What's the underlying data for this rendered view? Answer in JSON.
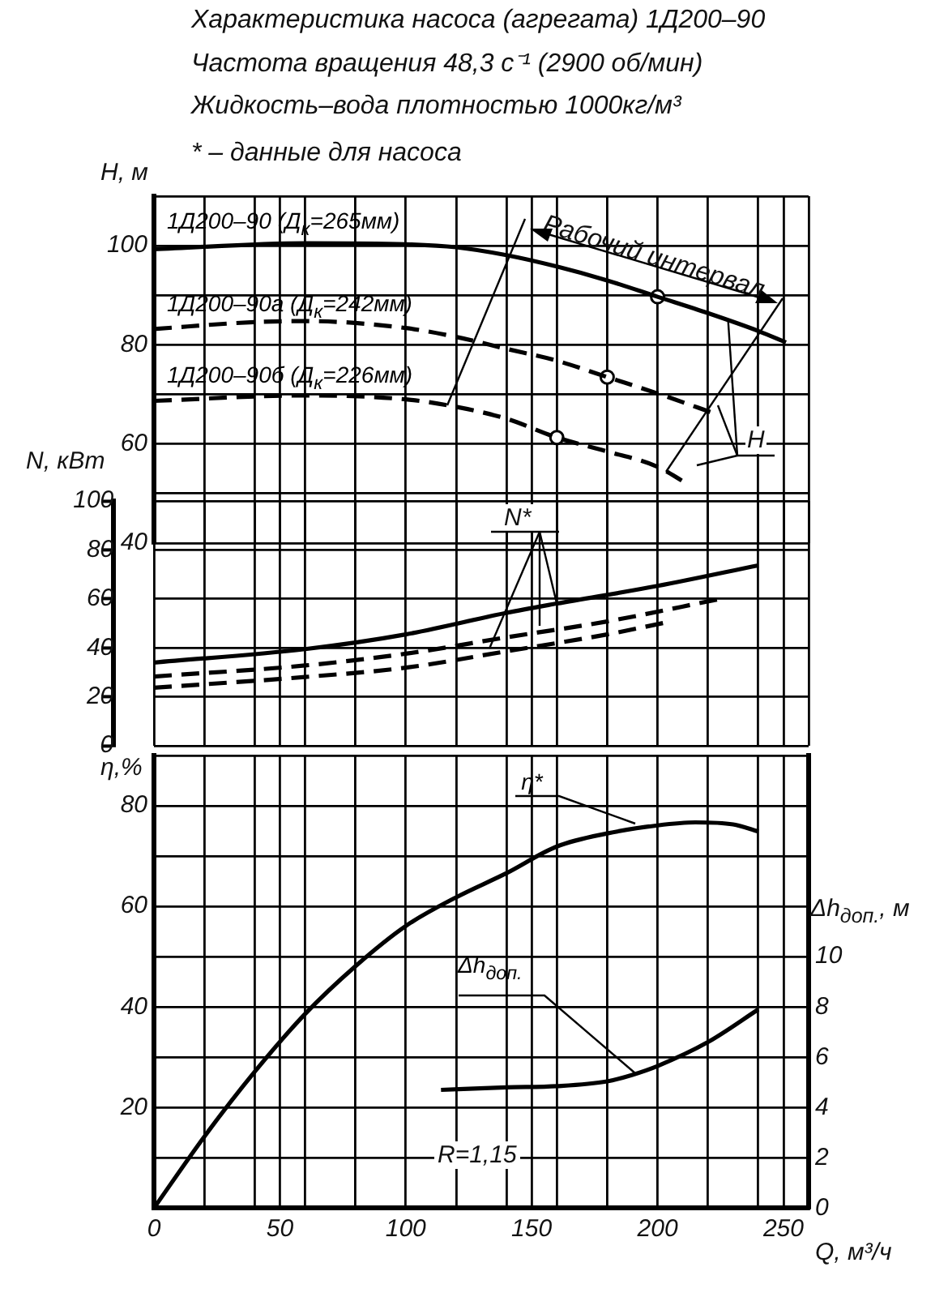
{
  "chart_data": [
    {
      "type": "line",
      "title": "Характеристика насоса (агрегата) 1Д200–90",
      "subtitle": "Частота вращения 48,3 с⁻¹ (2900 об/мин)",
      "annotations": [
        "Жидкость–вода плотностью 1000кг/м³",
        "* – данные для насоса",
        {
          "text": "Рабочий интервал",
          "x": 195,
          "y": 90.5
        },
        {
          "text": "H",
          "x": 228,
          "y": 85
        }
      ],
      "ylabel": "H, м",
      "tick_labels": "y",
      "xlim": [
        0,
        260
      ],
      "xticks": [
        0,
        {
          "value": 20,
          "label": null
        },
        {
          "value": 40,
          "label": null
        },
        50,
        {
          "value": 60,
          "label": null
        },
        {
          "value": 80,
          "label": null
        },
        100,
        {
          "value": 120,
          "label": null
        },
        {
          "value": 140,
          "label": null
        },
        150,
        {
          "value": 160,
          "label": null
        },
        {
          "value": 180,
          "label": null
        },
        200,
        {
          "value": 220,
          "label": null
        },
        {
          "value": 240,
          "label": null
        },
        250,
        {
          "value": 260,
          "label": null
        }
      ],
      "ylim": [
        40,
        110
      ],
      "yticks": [
        40,
        {
          "value": 50,
          "label": null
        },
        60,
        {
          "value": 70,
          "label": null
        },
        80,
        {
          "value": 90,
          "label": null
        },
        100,
        {
          "value": 110,
          "label": null
        }
      ],
      "grid": true,
      "marker": "none",
      "series": [
        {
          "name": "1Д200–90 (Д$_{к}$=265мм)",
          "color": "#000000",
          "line_style": "solid",
          "x": [
            0,
            60,
            100,
            120,
            140,
            160,
            180,
            200,
            220,
            240,
            251
          ],
          "values": [
            99.3,
            100.5,
            100.3,
            99.7,
            98.1,
            95.8,
            93,
            89.7,
            86.4,
            82.8,
            80.5
          ]
        },
        {
          "name": "1Д200–90а (Д$_{к}$=242мм)",
          "color": "#000000",
          "line_style": "dashed",
          "x": [
            0,
            40,
            60,
            100,
            120,
            140,
            160,
            180,
            200,
            224
          ],
          "values": [
            83.2,
            84.6,
            84.8,
            83.4,
            81.6,
            79.2,
            76.8,
            73.5,
            70.2,
            65.9
          ]
        },
        {
          "name": "1Д200–90б (Д$_{к}$=226мм)",
          "color": "#000000",
          "line_style": "dashed",
          "x": [
            0,
            60,
            100,
            120,
            140,
            160,
            180,
            200,
            211
          ],
          "values": [
            68.7,
            69.8,
            69,
            67.5,
            65.1,
            61.3,
            58.5,
            55.4,
            52.2
          ]
        },
        {
          "type": "scatter",
          "marker": "circle",
          "color": "#000000",
          "x": [
            200
          ],
          "values": [
            89.7
          ]
        },
        {
          "type": "scatter",
          "marker": "circle",
          "color": "#000000",
          "x": [
            180
          ],
          "values": [
            73.5
          ]
        },
        {
          "type": "scatter",
          "marker": "circle",
          "color": "#000000",
          "x": [
            160
          ],
          "values": [
            61.3
          ]
        }
      ]
    },
    {
      "type": "line",
      "annotations": [
        {
          "text": "N*",
          "x": 160,
          "y": 58.1
        }
      ],
      "ylabel": "N, кВт",
      "tick_labels": "y",
      "xlim": [
        0,
        260
      ],
      "xticks": [
        0,
        {
          "value": 20,
          "label": null
        },
        {
          "value": 40,
          "label": null
        },
        50,
        {
          "value": 60,
          "label": null
        },
        {
          "value": 80,
          "label": null
        },
        100,
        {
          "value": 120,
          "label": null
        },
        {
          "value": 140,
          "label": null
        },
        150,
        {
          "value": 160,
          "label": null
        },
        {
          "value": 180,
          "label": null
        },
        200,
        {
          "value": 220,
          "label": null
        },
        {
          "value": 240,
          "label": null
        },
        250,
        {
          "value": 260,
          "label": null
        }
      ],
      "ylim": [
        0,
        100
      ],
      "yticks": [
        0,
        20,
        40,
        60,
        80,
        100
      ],
      "grid": true,
      "marker": "none",
      "series": [
        {
          "color": "#000000",
          "line_style": "solid",
          "x": [
            0,
            60,
            100,
            140,
            160,
            200,
            240
          ],
          "values": [
            34,
            39.5,
            45.5,
            54.3,
            58.1,
            65.3,
            73.7
          ]
        },
        {
          "color": "#000000",
          "line_style": "dashed",
          "x": [
            0,
            60,
            100,
            140,
            180,
            224
          ],
          "values": [
            28.3,
            32.8,
            37.6,
            44.3,
            50.8,
            59.8
          ]
        },
        {
          "color": "#000000",
          "line_style": "dashed",
          "x": [
            0,
            60,
            100,
            140,
            180,
            204
          ],
          "values": [
            23.7,
            28.1,
            31.9,
            38.6,
            45.5,
            50.5
          ]
        }
      ]
    },
    {
      "type": "line",
      "annotations": [
        "R=1,15"
      ],
      "xlabel": "Q, м³/ч",
      "ylabel": "η,%",
      "y2label": "Δh$_{доп.}$, м",
      "xlim": [
        0,
        260
      ],
      "xticks": [
        0,
        {
          "value": 20,
          "label": null
        },
        {
          "value": 40,
          "label": null
        },
        50,
        {
          "value": 60,
          "label": null
        },
        {
          "value": 80,
          "label": null
        },
        100,
        {
          "value": 120,
          "label": null
        },
        {
          "value": 140,
          "label": null
        },
        150,
        {
          "value": 160,
          "label": null
        },
        {
          "value": 180,
          "label": null
        },
        200,
        {
          "value": 220,
          "label": null
        },
        {
          "value": 240,
          "label": null
        },
        250,
        {
          "value": 260,
          "label": null
        }
      ],
      "ylim": [
        0,
        90
      ],
      "yticks": [
        {
          "value": 0,
          "label": null
        },
        {
          "value": 10,
          "label": null
        },
        20,
        {
          "value": 30,
          "label": null
        },
        40,
        {
          "value": 50,
          "label": null
        },
        60,
        {
          "value": 70,
          "label": null
        },
        80,
        {
          "value": 90,
          "label": null
        }
      ],
      "y2lim": [
        0,
        18
      ],
      "y2ticks": [
        0,
        2,
        4,
        6,
        8,
        10
      ],
      "grid": true,
      "marker": "none",
      "series": [
        {
          "name": "η*",
          "color": "#000000",
          "line_style": "solid",
          "x": [
            0,
            20,
            40,
            60,
            80,
            100,
            120,
            140,
            160,
            180,
            200,
            215,
            230,
            240
          ],
          "values": [
            0,
            14.2,
            27.1,
            38.6,
            48.1,
            56.1,
            61.8,
            66.6,
            71.9,
            74.5,
            76.1,
            76.7,
            76.3,
            74.9
          ]
        },
        {
          "name": "Δh$_{доп.}$",
          "color": "#000000",
          "line_style": "solid",
          "axis": "y2",
          "x": [
            114,
            140,
            160,
            180,
            190,
            200,
            220,
            240
          ],
          "values": [
            4.7,
            4.8,
            4.85,
            5.04,
            5.3,
            5.65,
            6.6,
            7.9
          ]
        }
      ]
    }
  ]
}
